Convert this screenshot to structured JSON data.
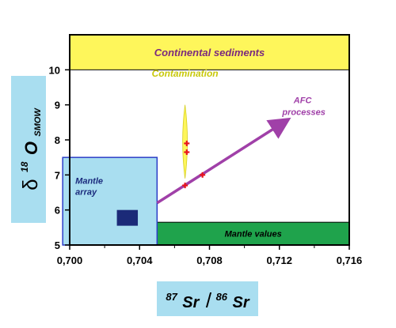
{
  "chart_data": {
    "type": "scatter",
    "title": "",
    "xlabel": {
      "sup1": "87",
      "main1": "Sr",
      "slash": "/",
      "sup2": "86",
      "main2": "Sr"
    },
    "ylabel": {
      "delta": "δ",
      "sup": "18",
      "main": "O",
      "sub": "SMOW"
    },
    "xlim": [
      0.7,
      0.716
    ],
    "ylim": [
      5,
      11
    ],
    "x_ticks": [
      "0,700",
      "0,704",
      "0,708",
      "0,712",
      "0,716"
    ],
    "x_tick_values": [
      0.7,
      0.704,
      0.708,
      0.712,
      0.716
    ],
    "y_ticks": [
      "5",
      "6",
      "7",
      "8",
      "9",
      "10"
    ],
    "y_tick_values": [
      5,
      6,
      7,
      8,
      9,
      10
    ],
    "grid": false,
    "regions": [
      {
        "label": "Continental sediments",
        "x0": 0.7,
        "x1": 0.716,
        "y0": 10,
        "y1": 11,
        "color": "#fef65b",
        "text_color": "#7b2a7e"
      },
      {
        "label": "Mantle values",
        "x0": 0.705,
        "x1": 0.716,
        "y0": 5,
        "y1": 5.65,
        "color": "#1fa34c",
        "text_color": "#000000"
      },
      {
        "label": "Mantle array",
        "x0": 0.6996,
        "x1": 0.705,
        "y0": 5,
        "y1": 7.5,
        "color": "#a9def0",
        "text_color": "#1a2a7c"
      }
    ],
    "mantle_box": {
      "x0": 0.7027,
      "x1": 0.7039,
      "y0": 5.55,
      "y1": 6.0,
      "color": "#1b2a78"
    },
    "contamination": {
      "label": "Contamination",
      "x": 0.7066,
      "y0": 6.9,
      "y1": 9.0,
      "color": "#fef65b",
      "text_color": "#c8c80a"
    },
    "afc": {
      "label_line1": "AFC",
      "label_line2": "processes",
      "x0": 0.705,
      "y0": 6.2,
      "x1": 0.7124,
      "y1": 8.55,
      "color": "#a040a8"
    },
    "points": [
      {
        "x": 0.7067,
        "y": 7.9
      },
      {
        "x": 0.7067,
        "y": 7.65
      },
      {
        "x": 0.7066,
        "y": 6.7
      },
      {
        "x": 0.7076,
        "y": 7.0
      }
    ],
    "point_color": "#e8141c",
    "colors": {
      "axis_title_bg": "#a9def0",
      "frame": "#000000"
    }
  }
}
